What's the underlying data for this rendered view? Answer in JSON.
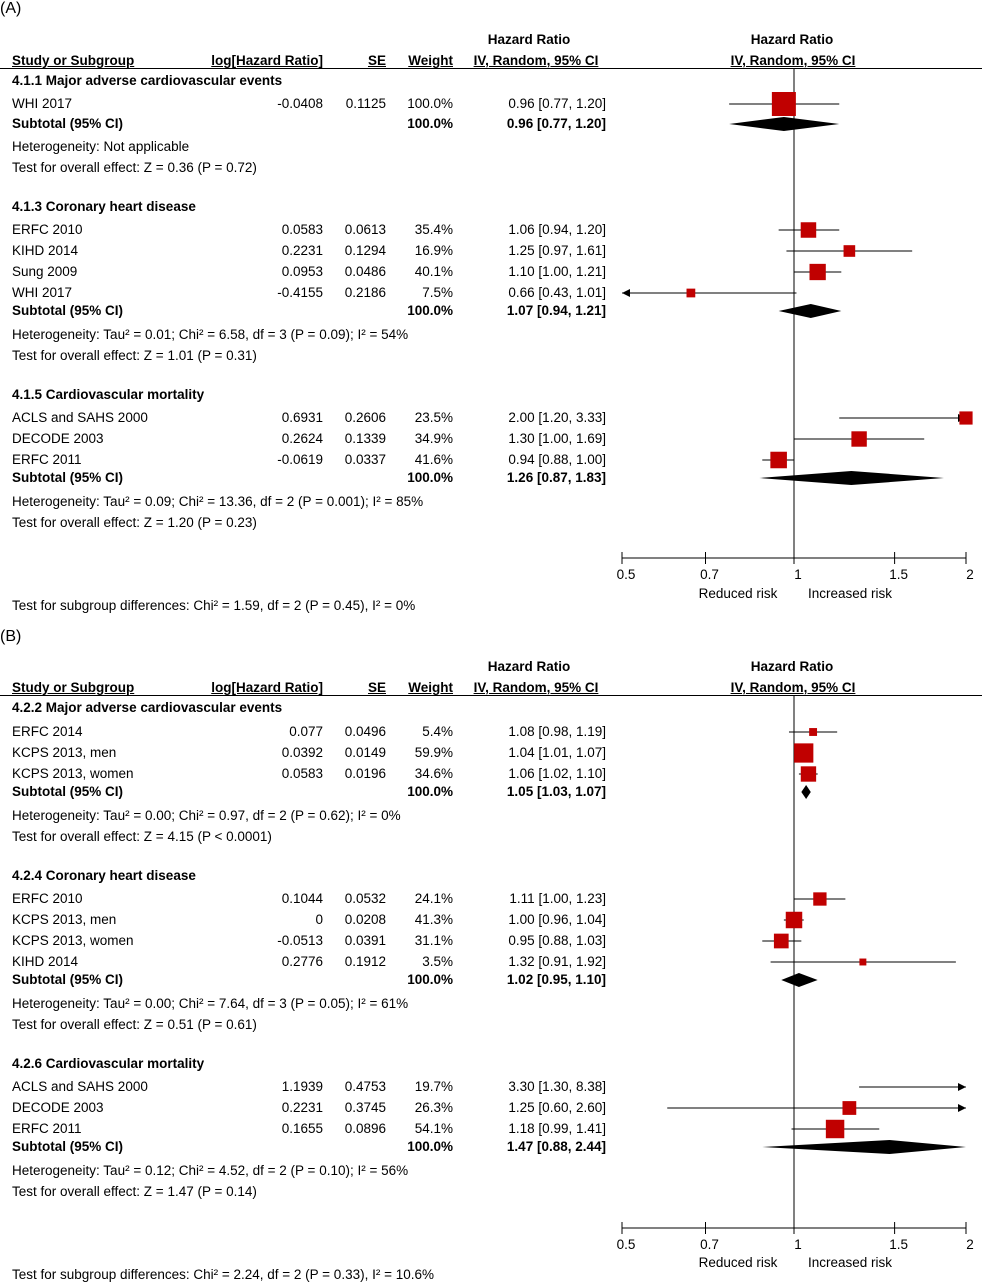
{
  "chart_data": [
    {
      "type": "forest",
      "panel": "(A)",
      "header_left": {
        "study_or_subgroup": "Study or Subgroup",
        "log_hr": "log[Hazard Ratio]",
        "se": "SE",
        "weight": "Weight",
        "hr_title": "Hazard Ratio",
        "hr_sub": "IV, Random, 95% CI"
      },
      "header_plot": {
        "title": "Hazard Ratio",
        "sub": "IV, Random, 95% CI"
      },
      "axis": {
        "scale": "log",
        "ticks": [
          0.5,
          0.7,
          1,
          1.5,
          2
        ],
        "tick_labels": [
          "0.5",
          "0.7",
          "1",
          "1.5",
          "2"
        ],
        "xlim": [
          0.5,
          2
        ],
        "label_left": "Reduced risk",
        "label_right": "Increased risk"
      },
      "subgroups": [
        {
          "title": "4.1.1 Major adverse cardiovascular events",
          "studies": [
            {
              "name": "WHI 2017",
              "loghr": "-0.0408",
              "se": "0.1125",
              "weight": "100.0%",
              "ci_text": "0.96 [0.77, 1.20]",
              "hr": 0.96,
              "lo": 0.77,
              "hi": 1.2,
              "w": 100.0
            }
          ],
          "subtotal": {
            "label": "Subtotal (95% CI)",
            "weight": "100.0%",
            "ci_text": "0.96 [0.77, 1.20]",
            "hr": 0.96,
            "lo": 0.77,
            "hi": 1.2
          },
          "heterogeneity": "Heterogeneity: Not applicable",
          "overall": "Test for overall effect: Z = 0.36 (P = 0.72)"
        },
        {
          "title": "4.1.3 Coronary heart disease",
          "studies": [
            {
              "name": "ERFC 2010",
              "loghr": "0.0583",
              "se": "0.0613",
              "weight": "35.4%",
              "ci_text": "1.06 [0.94, 1.20]",
              "hr": 1.06,
              "lo": 0.94,
              "hi": 1.2,
              "w": 35.4
            },
            {
              "name": "KIHD 2014",
              "loghr": "0.2231",
              "se": "0.1294",
              "weight": "16.9%",
              "ci_text": "1.25 [0.97, 1.61]",
              "hr": 1.25,
              "lo": 0.97,
              "hi": 1.61,
              "w": 16.9
            },
            {
              "name": "Sung 2009",
              "loghr": "0.0953",
              "se": "0.0486",
              "weight": "40.1%",
              "ci_text": "1.10 [1.00, 1.21]",
              "hr": 1.1,
              "lo": 1.0,
              "hi": 1.21,
              "w": 40.1
            },
            {
              "name": "WHI 2017",
              "loghr": "-0.4155",
              "se": "0.2186",
              "weight": "7.5%",
              "ci_text": "0.66 [0.43, 1.01]",
              "hr": 0.66,
              "lo": 0.43,
              "hi": 1.01,
              "w": 7.5
            }
          ],
          "subtotal": {
            "label": "Subtotal (95% CI)",
            "weight": "100.0%",
            "ci_text": "1.07 [0.94, 1.21]",
            "hr": 1.07,
            "lo": 0.94,
            "hi": 1.21
          },
          "heterogeneity": "Heterogeneity: Tau² = 0.01; Chi² = 6.58, df = 3 (P = 0.09); I² = 54%",
          "overall": "Test for overall effect: Z = 1.01 (P = 0.31)"
        },
        {
          "title": "4.1.5 Cardiovascular mortality",
          "studies": [
            {
              "name": "ACLS and SAHS 2000",
              "loghr": "0.6931",
              "se": "0.2606",
              "weight": "23.5%",
              "ci_text": "2.00 [1.20, 3.33]",
              "hr": 2.0,
              "lo": 1.2,
              "hi": 3.33,
              "w": 23.5
            },
            {
              "name": "DECODE 2003",
              "loghr": "0.2624",
              "se": "0.1339",
              "weight": "34.9%",
              "ci_text": "1.30 [1.00, 1.69]",
              "hr": 1.3,
              "lo": 1.0,
              "hi": 1.69,
              "w": 34.9
            },
            {
              "name": "ERFC 2011",
              "loghr": "-0.0619",
              "se": "0.0337",
              "weight": "41.6%",
              "ci_text": "0.94 [0.88, 1.00]",
              "hr": 0.94,
              "lo": 0.88,
              "hi": 1.0,
              "w": 41.6
            }
          ],
          "subtotal": {
            "label": "Subtotal (95% CI)",
            "weight": "100.0%",
            "ci_text": "1.26 [0.87, 1.83]",
            "hr": 1.26,
            "lo": 0.87,
            "hi": 1.83
          },
          "heterogeneity": "Heterogeneity: Tau² = 0.09; Chi² = 13.36, df = 2 (P = 0.001); I² = 85%",
          "overall": "Test for overall effect: Z = 1.20 (P = 0.23)"
        }
      ],
      "subgroup_diff": "Test for subgroup differences: Chi² = 1.59, df = 2 (P = 0.45), I² = 0%"
    },
    {
      "type": "forest",
      "panel": "(B)",
      "header_left": {
        "study_or_subgroup": "Study or Subgroup",
        "log_hr": "log[Hazard Ratio]",
        "se": "SE",
        "weight": "Weight",
        "hr_title": "Hazard Ratio",
        "hr_sub": "IV, Random, 95% CI"
      },
      "header_plot": {
        "title": "Hazard Ratio",
        "sub": "IV, Random, 95% CI"
      },
      "axis": {
        "scale": "log",
        "ticks": [
          0.5,
          0.7,
          1,
          1.5,
          2
        ],
        "tick_labels": [
          "0.5",
          "0.7",
          "1",
          "1.5",
          "2"
        ],
        "xlim": [
          0.5,
          2
        ],
        "label_left": "Reduced risk",
        "label_right": "Increased risk"
      },
      "subgroups": [
        {
          "title": "4.2.2 Major adverse cardiovascular events",
          "studies": [
            {
              "name": "ERFC 2014",
              "loghr": "0.077",
              "se": "0.0496",
              "weight": "5.4%",
              "ci_text": "1.08 [0.98, 1.19]",
              "hr": 1.08,
              "lo": 0.98,
              "hi": 1.19,
              "w": 5.4
            },
            {
              "name": "KCPS 2013, men",
              "loghr": "0.0392",
              "se": "0.0149",
              "weight": "59.9%",
              "ci_text": "1.04 [1.01, 1.07]",
              "hr": 1.04,
              "lo": 1.01,
              "hi": 1.07,
              "w": 59.9
            },
            {
              "name": "KCPS 2013, women",
              "loghr": "0.0583",
              "se": "0.0196",
              "weight": "34.6%",
              "ci_text": "1.06 [1.02, 1.10]",
              "hr": 1.06,
              "lo": 1.02,
              "hi": 1.1,
              "w": 34.6
            }
          ],
          "subtotal": {
            "label": "Subtotal (95% CI)",
            "weight": "100.0%",
            "ci_text": "1.05 [1.03, 1.07]",
            "hr": 1.05,
            "lo": 1.03,
            "hi": 1.07
          },
          "heterogeneity": "Heterogeneity: Tau² = 0.00; Chi² = 0.97, df = 2 (P = 0.62); I² = 0%",
          "overall": "Test for overall effect: Z = 4.15 (P < 0.0001)"
        },
        {
          "title": "4.2.4 Coronary heart disease",
          "studies": [
            {
              "name": "ERFC 2010",
              "loghr": "0.1044",
              "se": "0.0532",
              "weight": "24.1%",
              "ci_text": "1.11 [1.00, 1.23]",
              "hr": 1.11,
              "lo": 1.0,
              "hi": 1.23,
              "w": 24.1
            },
            {
              "name": "KCPS 2013, men",
              "loghr": "0",
              "se": "0.0208",
              "weight": "41.3%",
              "ci_text": "1.00 [0.96, 1.04]",
              "hr": 1.0,
              "lo": 0.96,
              "hi": 1.04,
              "w": 41.3
            },
            {
              "name": "KCPS 2013, women",
              "loghr": "-0.0513",
              "se": "0.0391",
              "weight": "31.1%",
              "ci_text": "0.95 [0.88, 1.03]",
              "hr": 0.95,
              "lo": 0.88,
              "hi": 1.03,
              "w": 31.1
            },
            {
              "name": "KIHD 2014",
              "loghr": "0.2776",
              "se": "0.1912",
              "weight": "3.5%",
              "ci_text": "1.32 [0.91, 1.92]",
              "hr": 1.32,
              "lo": 0.91,
              "hi": 1.92,
              "w": 3.5
            }
          ],
          "subtotal": {
            "label": "Subtotal (95% CI)",
            "weight": "100.0%",
            "ci_text": "1.02 [0.95, 1.10]",
            "hr": 1.02,
            "lo": 0.95,
            "hi": 1.1
          },
          "heterogeneity": "Heterogeneity: Tau² = 0.00; Chi² = 7.64, df = 3 (P = 0.05); I² = 61%",
          "overall": "Test for overall effect: Z = 0.51 (P = 0.61)"
        },
        {
          "title": "4.2.6 Cardiovascular mortality",
          "studies": [
            {
              "name": "ACLS and SAHS 2000",
              "loghr": "1.1939",
              "se": "0.4753",
              "weight": "19.7%",
              "ci_text": "3.30 [1.30, 8.38]",
              "hr": 3.3,
              "lo": 1.3,
              "hi": 8.38,
              "w": 19.7
            },
            {
              "name": "DECODE 2003",
              "loghr": "0.2231",
              "se": "0.3745",
              "weight": "26.3%",
              "ci_text": "1.25 [0.60, 2.60]",
              "hr": 1.25,
              "lo": 0.6,
              "hi": 2.6,
              "w": 26.3
            },
            {
              "name": "ERFC 2011",
              "loghr": "0.1655",
              "se": "0.0896",
              "weight": "54.1%",
              "ci_text": "1.18 [0.99, 1.41]",
              "hr": 1.18,
              "lo": 0.99,
              "hi": 1.41,
              "w": 54.1
            }
          ],
          "subtotal": {
            "label": "Subtotal (95% CI)",
            "weight": "100.0%",
            "ci_text": "1.47 [0.88, 2.44]",
            "hr": 1.47,
            "lo": 0.88,
            "hi": 2.44
          },
          "heterogeneity": "Heterogeneity: Tau² = 0.12; Chi² = 4.52, df = 2 (P = 0.10); I² = 56%",
          "overall": "Test for overall effect: Z = 1.47 (P = 0.14)"
        }
      ],
      "subgroup_diff": "Test for subgroup differences: Chi² = 2.24, df = 2 (P = 0.33), I² = 10.6%"
    }
  ],
  "colors": {
    "marker": "#c00000",
    "diamond": "#000000",
    "line": "#000000"
  }
}
